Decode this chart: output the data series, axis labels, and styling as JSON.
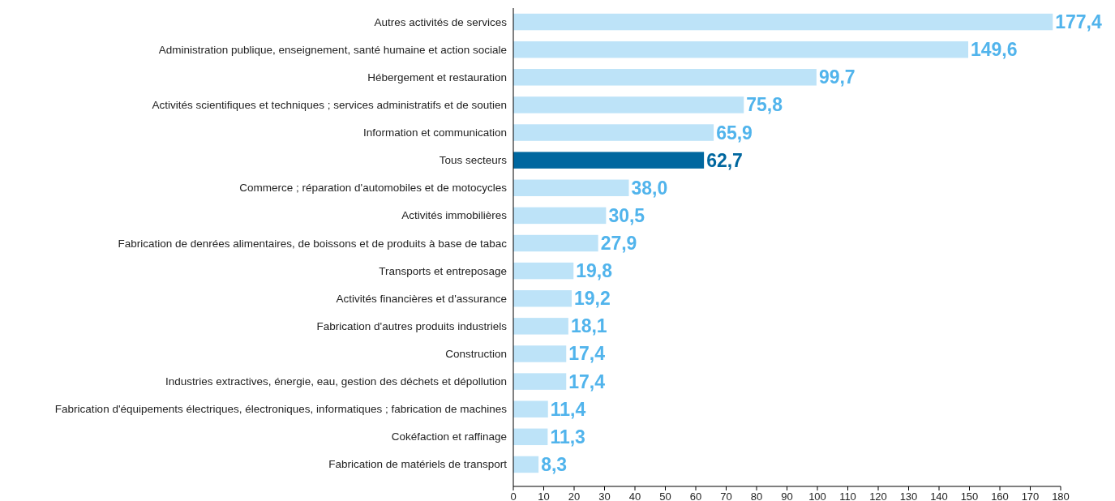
{
  "chart_data": {
    "type": "bar",
    "orientation": "horizontal",
    "categories": [
      "Autres activités de services",
      "Administration publique, enseignement, santé humaine et action sociale",
      "Hébergement et restauration",
      "Activités scientifiques et techniques ; services administratifs et de soutien",
      "Information et communication",
      "Tous secteurs",
      "Commerce ; réparation d'automobiles et de motocycles",
      "Activités immobilières",
      "Fabrication de denrées alimentaires, de boissons et de produits à base de tabac",
      "Transports et entreposage",
      "Activités financières et d'assurance",
      "Fabrication d'autres produits industriels",
      "Construction",
      "Industries extractives, énergie, eau, gestion des déchets et dépollution",
      "Fabrication d'équipements électriques, électroniques, informatiques ; fabrication de machines",
      "Cokéfaction et raffinage",
      "Fabrication de matériels de transport"
    ],
    "values": [
      177.4,
      149.6,
      99.7,
      75.8,
      65.9,
      62.7,
      38.0,
      30.5,
      27.9,
      19.8,
      19.2,
      18.1,
      17.4,
      17.4,
      11.4,
      11.3,
      8.3
    ],
    "value_labels": [
      "177,4",
      "149,6",
      "99,7",
      "75,8",
      "65,9",
      "62,7",
      "38,0",
      "30,5",
      "27,9",
      "19,8",
      "19,2",
      "18,1",
      "17,4",
      "17,4",
      "11,4",
      "11,3",
      "8,3"
    ],
    "colors": [
      "#bde3f8",
      "#bde3f8",
      "#bde3f8",
      "#bde3f8",
      "#bde3f8",
      "#00679f",
      "#bde3f8",
      "#bde3f8",
      "#bde3f8",
      "#bde3f8",
      "#bde3f8",
      "#bde3f8",
      "#bde3f8",
      "#bde3f8",
      "#bde3f8",
      "#bde3f8",
      "#bde3f8"
    ],
    "xlim": [
      0,
      180
    ],
    "xticks": [
      0,
      10,
      20,
      30,
      40,
      50,
      60,
      70,
      80,
      90,
      100,
      110,
      120,
      130,
      140,
      150,
      160,
      170,
      180
    ],
    "grid": false
  }
}
